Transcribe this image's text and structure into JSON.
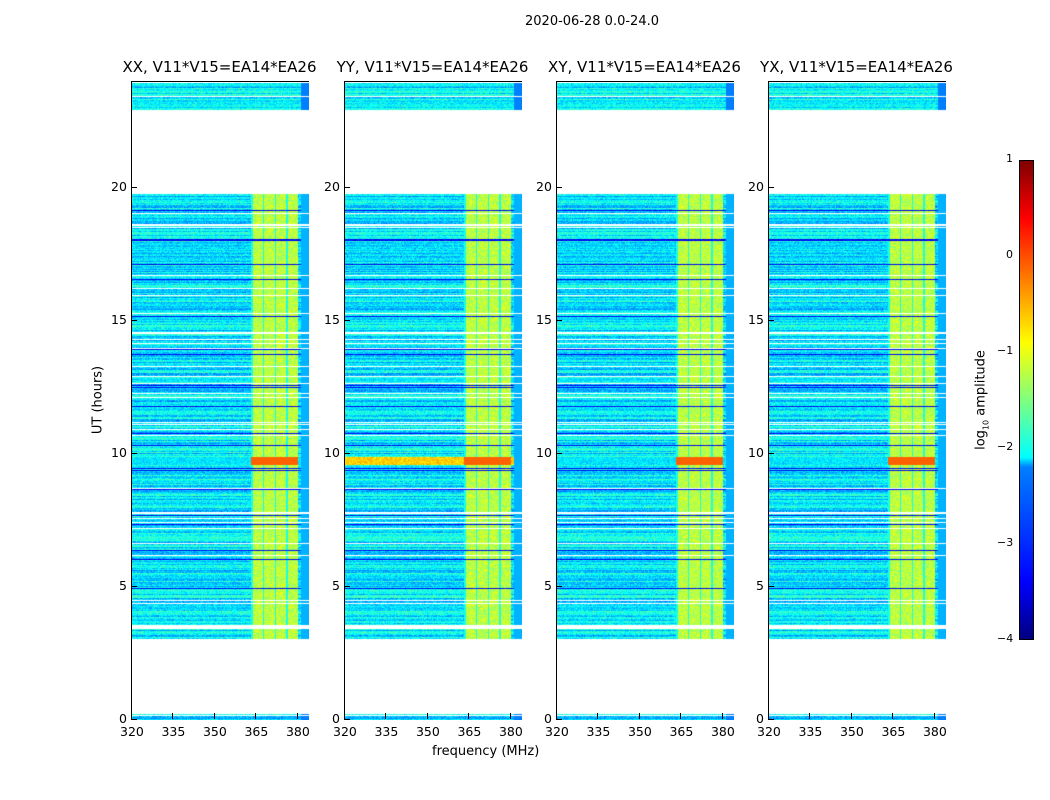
{
  "chart_data": {
    "type": "heatmap",
    "suptitle": "2020-06-28 0.0-24.0",
    "xlabel": "frequency (MHz)",
    "ylabel": "UT (hours)",
    "xlim": [
      320,
      384
    ],
    "ylim": [
      0,
      24
    ],
    "xticks": [
      "320",
      "335",
      "350",
      "365",
      "380"
    ],
    "yticks": [
      "0",
      "5",
      "10",
      "15",
      "20"
    ],
    "panels": [
      {
        "title": "XX, V11*V15=EA14*EA26"
      },
      {
        "title": "YY, V11*V15=EA14*EA26"
      },
      {
        "title": "XY, V11*V15=EA14*EA26"
      },
      {
        "title": "YX, V11*V15=EA14*EA26"
      }
    ],
    "flagged_hours": [
      [
        0.25,
        3.05
      ],
      [
        3.45,
        3.6
      ],
      [
        19.8,
        22.95
      ]
    ],
    "bright_band_mhz": [
      363,
      380
    ],
    "colorbar": {
      "label": "log10 amplitude",
      "label_main": "log",
      "label_sub": "10",
      "label_rest": " amplitude",
      "range": [
        -4,
        1
      ],
      "ticks": [
        "1",
        "0",
        "−1",
        "−2",
        "−3",
        "−4"
      ],
      "colormap": "jet"
    }
  }
}
